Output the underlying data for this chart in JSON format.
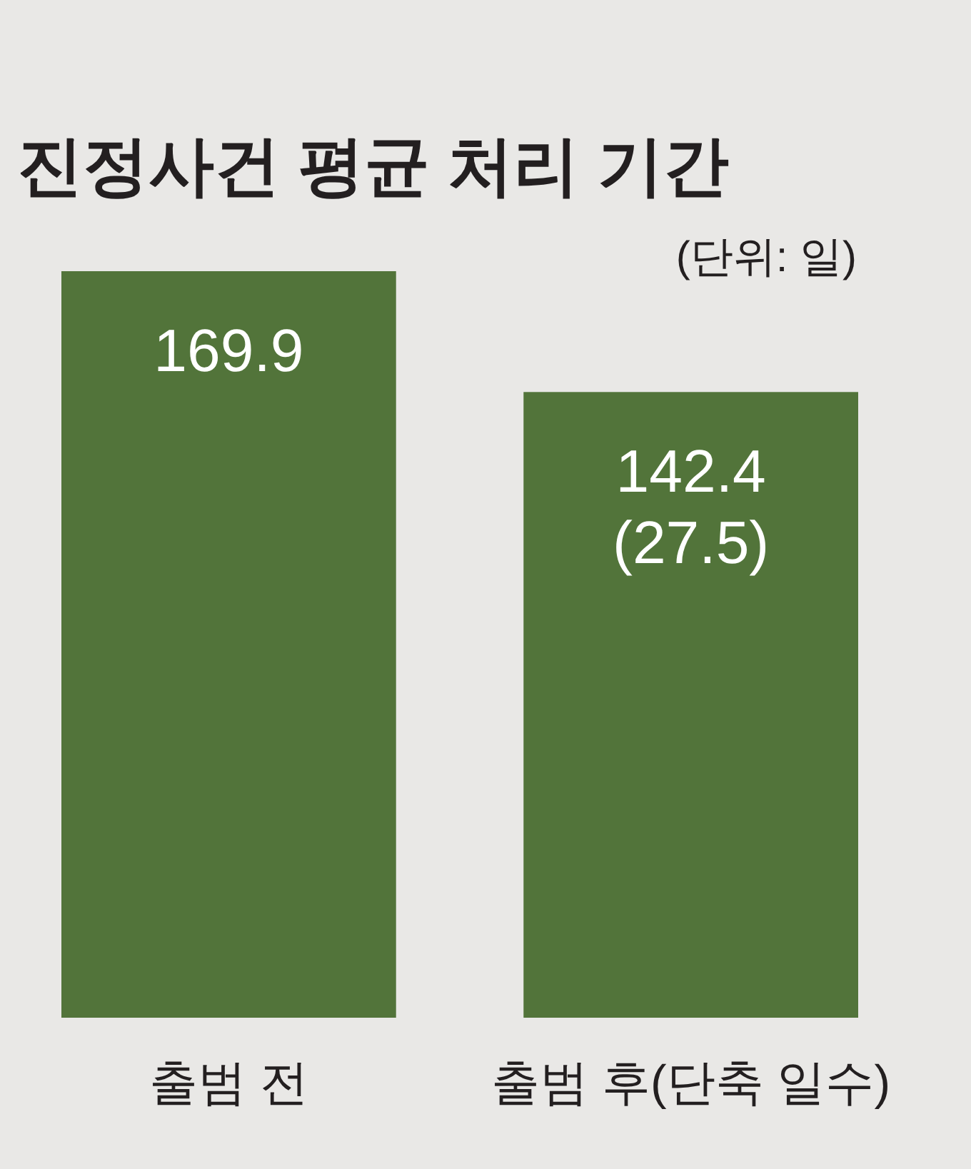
{
  "chart_data": {
    "type": "bar",
    "title": "진정사건 평균 처리 기간",
    "subtitle": "(단위: 일)",
    "categories": [
      "출범 전",
      "출범 후(단축 일수)"
    ],
    "values": [
      169.9,
      142.4
    ],
    "value_labels": [
      "169.9",
      "142.4\n(27.5)"
    ],
    "color": "#52743a"
  }
}
